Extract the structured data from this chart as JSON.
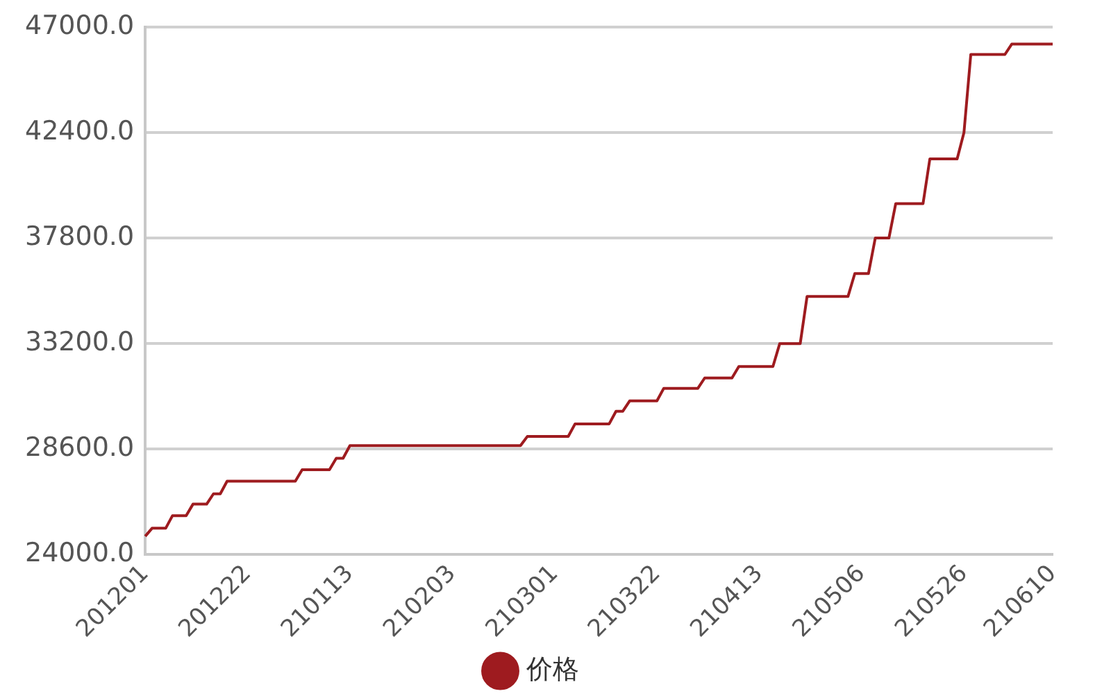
{
  "chart_data": {
    "type": "line",
    "categories": [
      "201201",
      null,
      null,
      null,
      null,
      null,
      null,
      null,
      null,
      null,
      null,
      null,
      null,
      null,
      null,
      "201222",
      null,
      null,
      null,
      null,
      null,
      null,
      null,
      null,
      null,
      null,
      null,
      null,
      null,
      null,
      "210113",
      null,
      null,
      null,
      null,
      null,
      null,
      null,
      null,
      null,
      null,
      null,
      null,
      null,
      null,
      "210203",
      null,
      null,
      null,
      null,
      null,
      null,
      null,
      null,
      null,
      null,
      null,
      null,
      null,
      null,
      "210301",
      null,
      null,
      null,
      null,
      null,
      null,
      null,
      null,
      null,
      null,
      null,
      null,
      null,
      null,
      "210322",
      null,
      null,
      null,
      null,
      null,
      null,
      null,
      null,
      null,
      null,
      null,
      null,
      null,
      null,
      "210413",
      null,
      null,
      null,
      null,
      null,
      null,
      null,
      null,
      null,
      null,
      null,
      null,
      null,
      null,
      "210506",
      null,
      null,
      null,
      null,
      null,
      null,
      null,
      null,
      null,
      null,
      null,
      null,
      null,
      null,
      "210526",
      null,
      null,
      null,
      null,
      null,
      null,
      null,
      null,
      null,
      null,
      null,
      null,
      "210610"
    ],
    "series": [
      {
        "name": "价格",
        "color": "#9e1b1f",
        "values": [
          24800,
          25150,
          25150,
          25150,
          25700,
          25700,
          25700,
          26200,
          26200,
          26200,
          26650,
          26650,
          27200,
          27200,
          27200,
          27200,
          27200,
          27200,
          27200,
          27200,
          27200,
          27200,
          27200,
          27700,
          27700,
          27700,
          27700,
          27700,
          28200,
          28200,
          28750,
          28750,
          28750,
          28750,
          28750,
          28750,
          28750,
          28750,
          28750,
          28750,
          28750,
          28750,
          28750,
          28750,
          28750,
          28750,
          28750,
          28750,
          28750,
          28750,
          28750,
          28750,
          28750,
          28750,
          28750,
          28750,
          29150,
          29150,
          29150,
          29150,
          29150,
          29150,
          29150,
          29700,
          29700,
          29700,
          29700,
          29700,
          29700,
          30250,
          30250,
          30700,
          30700,
          30700,
          30700,
          30700,
          31250,
          31250,
          31250,
          31250,
          31250,
          31250,
          31700,
          31700,
          31700,
          31700,
          31700,
          32200,
          32200,
          32200,
          32200,
          32200,
          32200,
          33200,
          33200,
          33200,
          33200,
          35250,
          35250,
          35250,
          35250,
          35250,
          35250,
          35250,
          36250,
          36250,
          36250,
          37800,
          37800,
          37800,
          39300,
          39300,
          39300,
          39300,
          39300,
          41250,
          41250,
          41250,
          41250,
          41250,
          42400,
          45800,
          45800,
          45800,
          45800,
          45800,
          45800,
          46250,
          46250,
          46250,
          46250,
          46250,
          46250,
          46250
        ]
      }
    ],
    "ylim": [
      24000,
      47000
    ],
    "yticks": [
      {
        "value": 24000,
        "label": "24000.0"
      },
      {
        "value": 28600,
        "label": "28600.0"
      },
      {
        "value": 33200,
        "label": "33200.0"
      },
      {
        "value": 37800,
        "label": "37800.0"
      },
      {
        "value": 42400,
        "label": "42400.0"
      },
      {
        "value": 47000,
        "label": "47000.0"
      }
    ],
    "grid": "y",
    "legend": "bottom",
    "marker": "none",
    "line_style": "solid"
  }
}
